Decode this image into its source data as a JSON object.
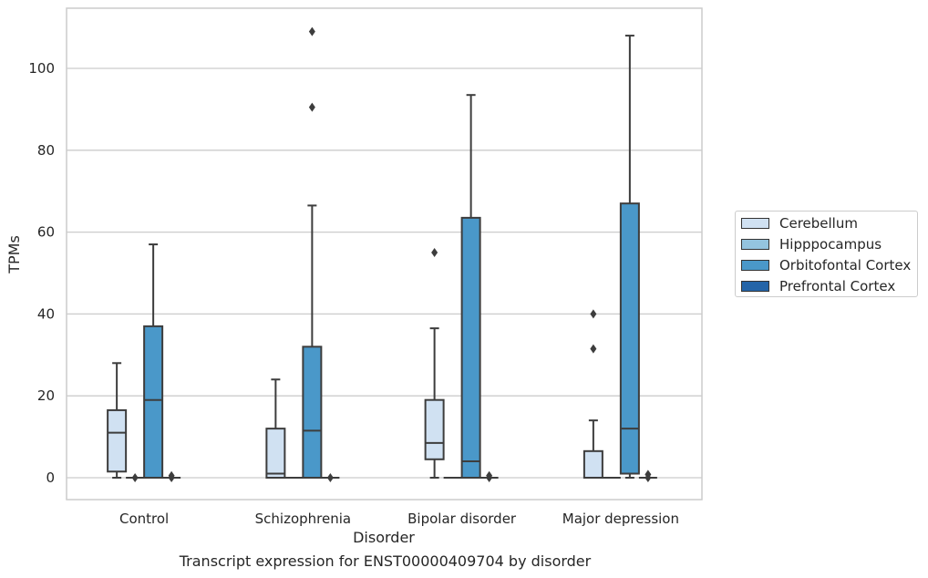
{
  "caption": "Transcript expression for ENST00000409704 by disorder",
  "chart_data": {
    "type": "boxplot",
    "title": "",
    "xlabel": "Disorder",
    "ylabel": "TPMs",
    "ylim": [
      -5,
      115
    ],
    "yticks": [
      0,
      20,
      40,
      60,
      80,
      100
    ],
    "grid": "horizontal",
    "legend_position": "right",
    "categories": [
      "Control",
      "Schizophrenia",
      "Bipolar disorder",
      "Major depression"
    ],
    "series": [
      {
        "name": "Cerebellum",
        "color": "#d0e1f2",
        "boxes": [
          {
            "whislo": 0,
            "q1": 1.5,
            "med": 11,
            "q3": 16.5,
            "whishi": 28,
            "fliers": []
          },
          {
            "whislo": 0,
            "q1": 0,
            "med": 1,
            "q3": 12,
            "whishi": 24,
            "fliers": []
          },
          {
            "whislo": 0,
            "q1": 4.5,
            "med": 8.5,
            "q3": 19,
            "whishi": 36.5,
            "fliers": [
              55
            ]
          },
          {
            "whislo": 0,
            "q1": 0,
            "med": 0,
            "q3": 6.5,
            "whishi": 14,
            "fliers": [
              31.5,
              40
            ]
          }
        ]
      },
      {
        "name": "Hipppocampus",
        "color": "#94c4df",
        "boxes": [
          {
            "whislo": 0,
            "q1": 0,
            "med": 0,
            "q3": 0,
            "whishi": 0,
            "fliers": [
              0
            ]
          },
          {
            "whislo": 0,
            "q1": 0,
            "med": 0,
            "q3": 0,
            "whishi": 0,
            "fliers": []
          },
          {
            "whislo": 0,
            "q1": 0,
            "med": 0,
            "q3": 0,
            "whishi": 0,
            "fliers": []
          },
          {
            "whislo": 0,
            "q1": 0,
            "med": 0,
            "q3": 0,
            "whishi": 0,
            "fliers": []
          }
        ]
      },
      {
        "name": "Orbitofontal Cortex",
        "color": "#4a98c9",
        "boxes": [
          {
            "whislo": 0,
            "q1": 0,
            "med": 19,
            "q3": 37,
            "whishi": 57,
            "fliers": []
          },
          {
            "whislo": 0,
            "q1": 0,
            "med": 11.5,
            "q3": 32,
            "whishi": 66.5,
            "fliers": [
              90.5,
              109
            ]
          },
          {
            "whislo": 0,
            "q1": 0,
            "med": 4,
            "q3": 63.5,
            "whishi": 93.5,
            "fliers": []
          },
          {
            "whislo": 0,
            "q1": 1,
            "med": 12,
            "q3": 67,
            "whishi": 108,
            "fliers": []
          }
        ]
      },
      {
        "name": "Prefrontal Cortex",
        "color": "#2464a8",
        "boxes": [
          {
            "whislo": 0,
            "q1": 0,
            "med": 0,
            "q3": 0,
            "whishi": 0,
            "fliers": [
              0,
              0.5
            ]
          },
          {
            "whislo": 0,
            "q1": 0,
            "med": 0,
            "q3": 0,
            "whishi": 0,
            "fliers": [
              0
            ]
          },
          {
            "whislo": 0,
            "q1": 0,
            "med": 0,
            "q3": 0,
            "whishi": 0,
            "fliers": [
              0,
              0.5
            ]
          },
          {
            "whislo": 0,
            "q1": 0,
            "med": 0,
            "q3": 0,
            "whishi": 0,
            "fliers": [
              0,
              0.8
            ]
          }
        ]
      }
    ]
  }
}
